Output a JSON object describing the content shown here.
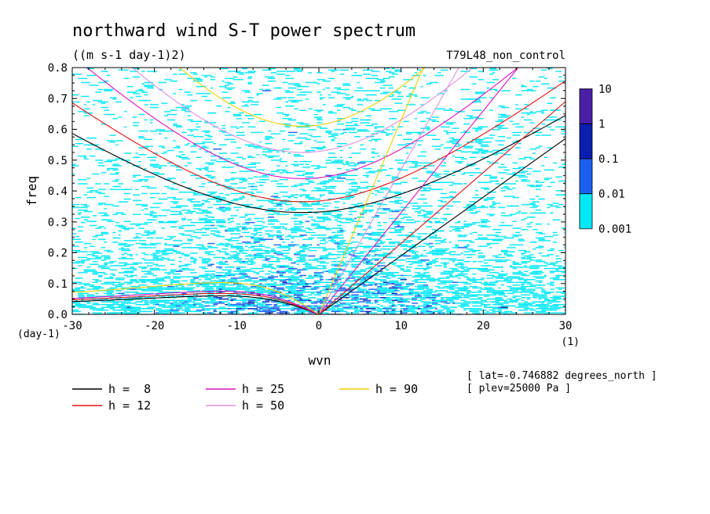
{
  "chart_data": {
    "type": "heatmap",
    "title": "northward wind S-T power spectrum",
    "subtitle": "((m s-1 day-1)2)",
    "tag": "T79L48_non_control",
    "xlabel": "wvn",
    "ylabel": "freq",
    "xunit": "(1)",
    "yunit": "(day-1)",
    "xlim": [
      -30,
      30
    ],
    "ylim": [
      0,
      0.8
    ],
    "xticks": [
      "-30",
      "-20",
      "-10",
      "0",
      "10",
      "20",
      "30"
    ],
    "yticks": [
      "0.0",
      "0.1",
      "0.2",
      "0.3",
      "0.4",
      "0.5",
      "0.6",
      "0.7",
      "0.8"
    ],
    "colorbar": {
      "labels": [
        "10",
        "1",
        "0.1",
        "0.01",
        "0.001"
      ],
      "colors": [
        "#4a1fa8",
        "#0a1eb0",
        "#1c5ff0",
        "#00e8f8"
      ]
    },
    "shading_colors": {
      "low": "#00e8f8",
      "mid": "#1c5ff0",
      "high": "#0a1eb0"
    },
    "legend": [
      {
        "label": "h =  8",
        "color": "#000000"
      },
      {
        "label": "h = 12",
        "color": "#e01010"
      },
      {
        "label": "h = 25",
        "color": "#e010c0"
      },
      {
        "label": "h = 50",
        "color": "#e090e0"
      },
      {
        "label": "h = 90",
        "color": "#f0d000"
      }
    ],
    "dispersion_curves": [
      {
        "h": 8,
        "color": "#000000",
        "ig1_min": 0.33,
        "ig1_curv": 0.0003,
        "ig0_slope": 0.019
      },
      {
        "h": 12,
        "color": "#e01010",
        "ig1_min": 0.365,
        "ig1_curv": 0.00043,
        "ig0_slope": 0.023
      },
      {
        "h": 25,
        "color": "#e010c0",
        "ig1_min": 0.44,
        "ig1_curv": 0.00065,
        "ig0_slope": 0.033
      },
      {
        "h": 50,
        "color": "#e090e0",
        "ig1_min": 0.525,
        "ig1_curv": 0.00085,
        "ig0_slope": 0.047
      },
      {
        "h": 90,
        "color": "#f0d000",
        "ig1_min": 0.61,
        "ig1_curv": 0.0012,
        "ig0_slope": 0.063
      }
    ],
    "rossby_curves": [
      {
        "h": 8,
        "color": "#000000",
        "peak": 0.06
      },
      {
        "h": 12,
        "color": "#e01010",
        "peak": 0.068
      },
      {
        "h": 25,
        "color": "#e010c0",
        "peak": 0.075
      },
      {
        "h": 90,
        "color": "#f0d000",
        "peak": 0.103
      }
    ],
    "annotations": [
      "[ lat=-0.746882 degrees_north ]",
      "[ plev=25000 Pa ]"
    ]
  }
}
